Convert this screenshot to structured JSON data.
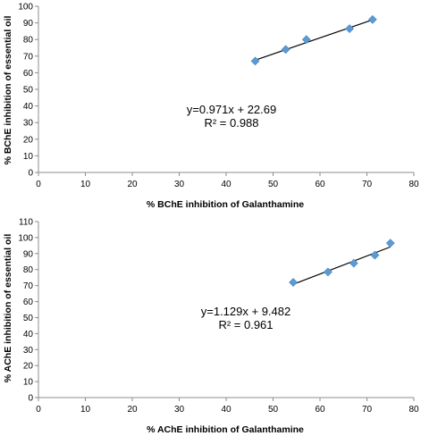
{
  "chart_data": [
    {
      "type": "scatter",
      "xlabel": "% BChE inhibition of Galanthamine",
      "ylabel": "% BChE inhibition of essential oil",
      "xlim": [
        0,
        80
      ],
      "ylim": [
        0,
        100
      ],
      "xticks": [
        0,
        10,
        20,
        30,
        40,
        50,
        60,
        70,
        80
      ],
      "yticks": [
        0,
        10,
        20,
        30,
        40,
        50,
        60,
        70,
        80,
        90,
        100
      ],
      "grid": false,
      "marker_color": "#5b9bd5",
      "line_color": "#000000",
      "points": [
        {
          "x": 46.2,
          "y": 67
        },
        {
          "x": 52.7,
          "y": 74
        },
        {
          "x": 57.1,
          "y": 80
        },
        {
          "x": 66.3,
          "y": 86.5
        },
        {
          "x": 71.2,
          "y": 92
        }
      ],
      "trendline": {
        "slope": 0.971,
        "intercept": 22.69,
        "x_range": [
          46.2,
          71.2
        ]
      },
      "equation": "y=0.971x + 22.69",
      "r_squared": "R² = 0.988"
    },
    {
      "type": "scatter",
      "xlabel": "% AChE inhibition of Galanthamine",
      "ylabel": "% AChE inhibition of essential oil",
      "xlim": [
        0,
        80
      ],
      "ylim": [
        0,
        110
      ],
      "xticks": [
        0,
        10,
        20,
        30,
        40,
        50,
        60,
        70,
        80
      ],
      "yticks": [
        0,
        10,
        20,
        30,
        40,
        50,
        60,
        70,
        80,
        90,
        100,
        110
      ],
      "grid": false,
      "marker_color": "#5b9bd5",
      "line_color": "#000000",
      "points": [
        {
          "x": 54.3,
          "y": 72
        },
        {
          "x": 61.7,
          "y": 78.5
        },
        {
          "x": 67.2,
          "y": 84
        },
        {
          "x": 71.7,
          "y": 89
        },
        {
          "x": 75,
          "y": 96.5
        }
      ],
      "trendline": {
        "slope": 1.129,
        "intercept": 9.482,
        "x_range": [
          54.3,
          75
        ]
      },
      "equation": "y=1.129x + 9.482",
      "r_squared": "R² = 0.961"
    }
  ]
}
